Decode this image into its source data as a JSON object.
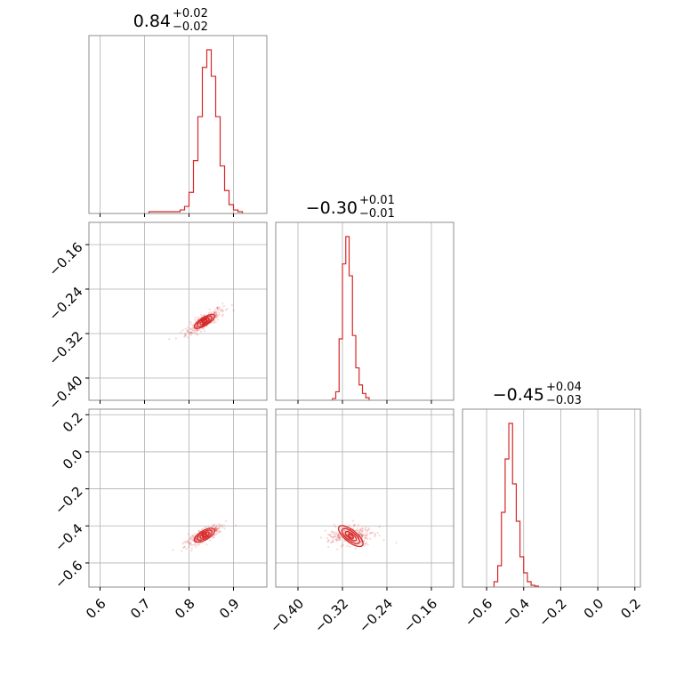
{
  "chart_data": {
    "type": "corner",
    "color": "#d62728",
    "grid": true,
    "parameters": [
      {
        "title": {
          "median": "0.84",
          "plus": "+0.02",
          "minus": "−0.02"
        },
        "range": [
          0.575,
          0.975
        ],
        "ticks": [
          0.6,
          0.7,
          0.8,
          0.9
        ],
        "tick_labels": [
          "0.6",
          "0.7",
          "0.8",
          "0.9"
        ]
      },
      {
        "title": {
          "median": "−0.30",
          "plus": "+0.01",
          "minus": "−0.01"
        },
        "range": [
          -0.44,
          -0.12
        ],
        "ticks": [
          -0.4,
          -0.32,
          -0.24,
          -0.16
        ],
        "tick_labels": [
          "−0.40",
          "−0.32",
          "−0.24",
          "−0.16"
        ]
      },
      {
        "title": {
          "median": "−0.45",
          "plus": "+0.04",
          "minus": "−0.03"
        },
        "range": [
          -0.73,
          0.23
        ],
        "ticks": [
          -0.6,
          -0.4,
          -0.2,
          0.0,
          0.2
        ],
        "tick_labels": [
          "−0.6",
          "−0.4",
          "−0.2",
          "0.0",
          "0.2"
        ]
      }
    ],
    "histograms": [
      {
        "bin_width": 0.01,
        "bins": [
          [
            0.71,
            0.01
          ],
          [
            0.76,
            0.01
          ],
          [
            0.77,
            0.01
          ],
          [
            0.78,
            0.02
          ],
          [
            0.79,
            0.04
          ],
          [
            0.8,
            0.12
          ],
          [
            0.81,
            0.3
          ],
          [
            0.82,
            0.55
          ],
          [
            0.83,
            0.83
          ],
          [
            0.84,
            0.93
          ],
          [
            0.85,
            0.78
          ],
          [
            0.86,
            0.55
          ],
          [
            0.87,
            0.27
          ],
          [
            0.88,
            0.13
          ],
          [
            0.89,
            0.05
          ],
          [
            0.9,
            0.02
          ],
          [
            0.91,
            0.01
          ]
        ]
      },
      {
        "bin_width": 0.006,
        "bins": [
          [
            -0.338,
            0.01
          ],
          [
            -0.332,
            0.05
          ],
          [
            -0.326,
            0.36
          ],
          [
            -0.32,
            0.8
          ],
          [
            -0.314,
            0.96
          ],
          [
            -0.308,
            0.73
          ],
          [
            -0.302,
            0.38
          ],
          [
            -0.296,
            0.19
          ],
          [
            -0.29,
            0.09
          ],
          [
            -0.284,
            0.04
          ],
          [
            -0.278,
            0.015
          ]
        ]
      },
      {
        "bin_width": 0.02,
        "bins": [
          [
            -0.56,
            0.03
          ],
          [
            -0.54,
            0.12
          ],
          [
            -0.52,
            0.42
          ],
          [
            -0.5,
            0.72
          ],
          [
            -0.48,
            0.92
          ],
          [
            -0.46,
            0.58
          ],
          [
            -0.44,
            0.37
          ],
          [
            -0.42,
            0.17
          ],
          [
            -0.4,
            0.08
          ],
          [
            -0.38,
            0.03
          ],
          [
            -0.36,
            0.01
          ],
          [
            -0.34,
            0.005
          ]
        ]
      }
    ],
    "pairs": [
      {
        "x_param": 0,
        "y_param": 1,
        "center": [
          0.835,
          -0.298
        ],
        "direction": [
          0.04,
          0.02
        ],
        "width": 0.006
      },
      {
        "x_param": 0,
        "y_param": 2,
        "center": [
          0.835,
          -0.45
        ],
        "direction": [
          0.04,
          0.055
        ],
        "width": 0.01
      },
      {
        "x_param": 1,
        "y_param": 2,
        "center": [
          -0.305,
          -0.455
        ],
        "direction": [
          0.012,
          0.045
        ],
        "width": 0.022
      }
    ]
  }
}
